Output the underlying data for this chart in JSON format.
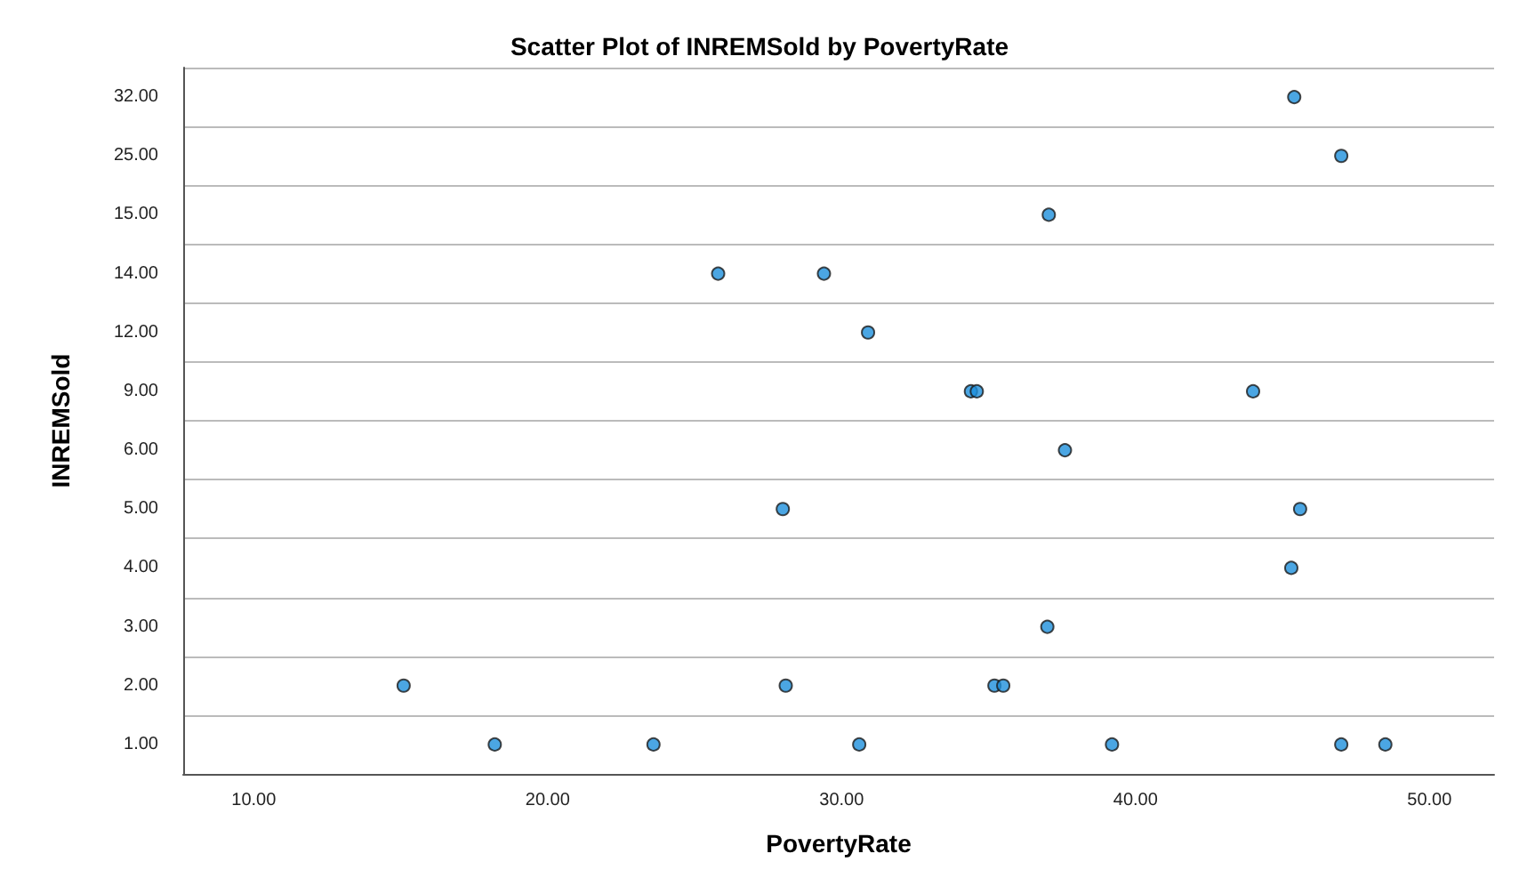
{
  "chart_data": {
    "type": "scatter",
    "orientation": "horizontal",
    "title": "Scatter Plot of INREMSold by PovertyRate",
    "xlabel": "PovertyRate",
    "ylabel": "INREMSold",
    "categories": [
      "32.00",
      "25.00",
      "15.00",
      "14.00",
      "12.00",
      "9.00",
      "6.00",
      "5.00",
      "4.00",
      "3.00",
      "2.00",
      "1.00"
    ],
    "series": [
      {
        "color": "#1e90dc",
        "values": [
          45.4,
          47.0,
          37.05,
          25.8,
          30.9,
          34.4,
          37.6,
          28.0,
          45.3,
          37.0,
          15.1,
          18.2
        ]
      },
      {
        "color": "#1e90dc",
        "values": [
          null,
          null,
          null,
          29.4,
          null,
          34.6,
          null,
          45.6,
          null,
          null,
          28.1,
          23.6
        ]
      },
      {
        "color": "#1e90dc",
        "values": [
          null,
          null,
          null,
          null,
          null,
          44.0,
          null,
          null,
          null,
          null,
          35.2,
          30.6
        ]
      },
      {
        "color": "#1e90dc",
        "values": [
          null,
          null,
          null,
          null,
          null,
          null,
          null,
          null,
          null,
          null,
          35.5,
          39.2
        ]
      },
      {
        "color": "#1e90dc",
        "values": [
          null,
          null,
          null,
          null,
          null,
          null,
          null,
          null,
          null,
          null,
          null,
          47.0
        ]
      },
      {
        "color": "#1e90dc",
        "values": [
          null,
          null,
          null,
          null,
          null,
          null,
          null,
          null,
          null,
          null,
          null,
          48.5
        ]
      }
    ],
    "xlim": [
      7.6,
      52.2
    ],
    "xticks": [
      {
        "value": 10,
        "label": "10.00"
      },
      {
        "value": 20,
        "label": "20.00"
      },
      {
        "value": 30,
        "label": "30.00"
      },
      {
        "value": 40,
        "label": "40.00"
      },
      {
        "value": 50,
        "label": "50.00"
      }
    ],
    "grid": "y",
    "marker": "circle"
  }
}
